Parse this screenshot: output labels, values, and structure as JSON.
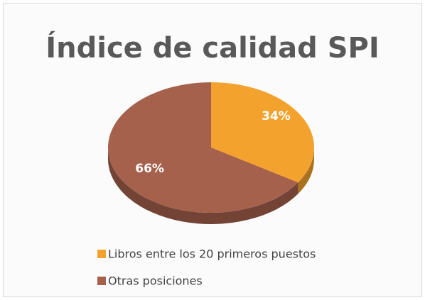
{
  "chart_data": {
    "type": "pie",
    "title": "Índice de calidad SPI",
    "categories": [
      "Libros entre los 20 primeros puestos",
      "Otras posiciones"
    ],
    "values": [
      34,
      66
    ],
    "value_labels": [
      "34%",
      "66%"
    ],
    "colors": [
      "#f4a22e",
      "#a5614b"
    ],
    "legend": "bottom"
  }
}
